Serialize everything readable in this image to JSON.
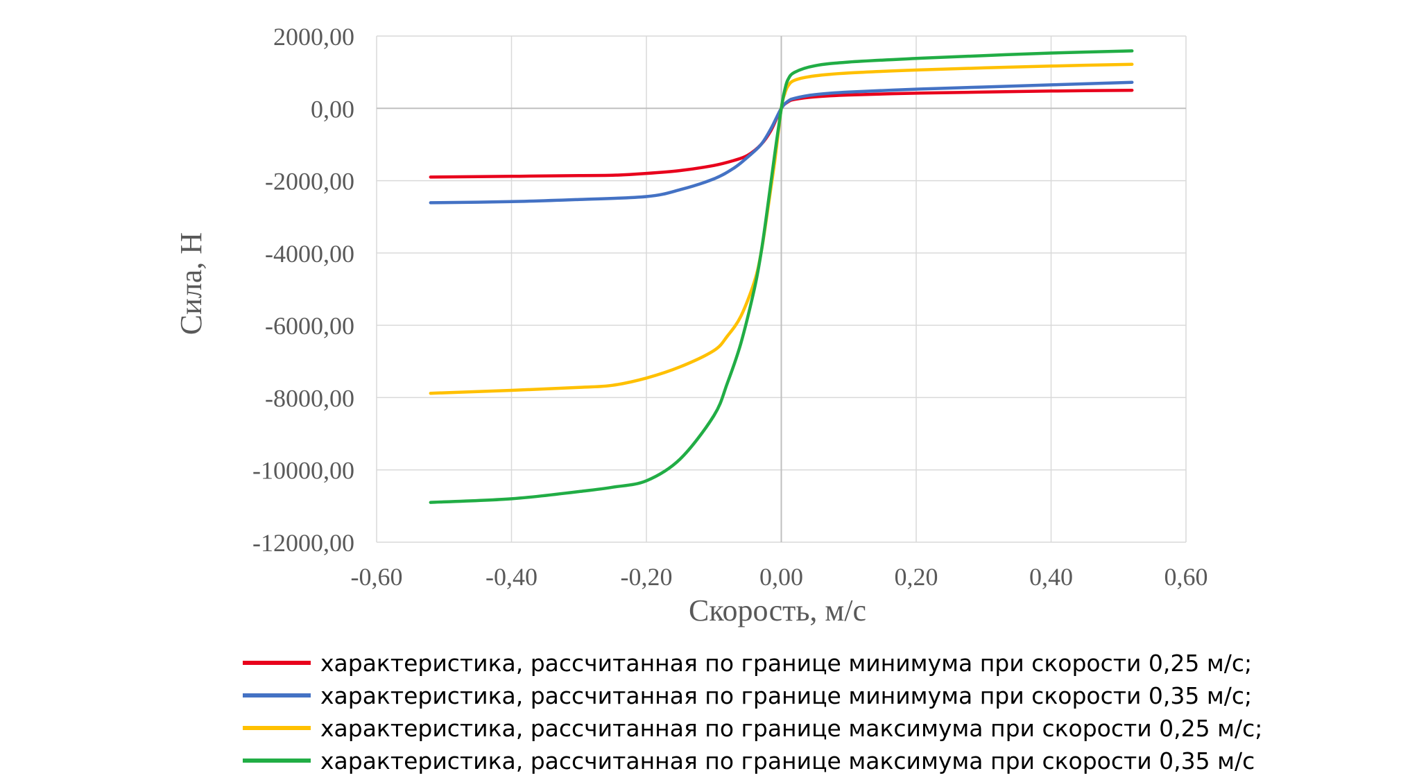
{
  "chart_data": {
    "type": "line",
    "title": "",
    "xlabel": "Скорость, м/с",
    "ylabel": "Сила, Н",
    "xlim": [
      -0.6,
      0.6
    ],
    "ylim": [
      -12000,
      2000
    ],
    "grid": true,
    "legend_position": "bottom",
    "x_ticks": [
      -0.6,
      -0.4,
      -0.2,
      0.0,
      0.2,
      0.4,
      0.6
    ],
    "y_ticks": [
      2000,
      0,
      -2000,
      -4000,
      -6000,
      -8000,
      -10000,
      -12000
    ],
    "x_tick_labels": [
      "-0,60",
      "-0,40",
      "-0,20",
      "0,00",
      "0,20",
      "0,40",
      "0,60"
    ],
    "y_tick_labels": [
      "2000,00",
      "0,00",
      "-2000,00",
      "-4000,00",
      "-6000,00",
      "-8000,00",
      "-10000,00",
      "-12000,00"
    ],
    "series": [
      {
        "name": "характеристика, рассчитанная по границе минимума при скорости 0,25 м/с;",
        "color": "#E8001C",
        "points": [
          [
            -0.52,
            -1900
          ],
          [
            -0.4,
            -1880
          ],
          [
            -0.3,
            -1860
          ],
          [
            -0.25,
            -1850
          ],
          [
            -0.2,
            -1800
          ],
          [
            -0.15,
            -1720
          ],
          [
            -0.1,
            -1580
          ],
          [
            -0.07,
            -1440
          ],
          [
            -0.05,
            -1300
          ],
          [
            -0.03,
            -1000
          ],
          [
            -0.015,
            -600
          ],
          [
            0,
            0
          ],
          [
            0.01,
            180
          ],
          [
            0.02,
            250
          ],
          [
            0.05,
            320
          ],
          [
            0.1,
            370
          ],
          [
            0.2,
            420
          ],
          [
            0.3,
            450
          ],
          [
            0.4,
            480
          ],
          [
            0.52,
            500
          ]
        ]
      },
      {
        "name": "характеристика, рассчитанная по границе минимума при скорости 0,35 м/с;",
        "color": "#4472C4",
        "points": [
          [
            -0.52,
            -2610
          ],
          [
            -0.4,
            -2580
          ],
          [
            -0.3,
            -2520
          ],
          [
            -0.2,
            -2440
          ],
          [
            -0.15,
            -2250
          ],
          [
            -0.1,
            -1950
          ],
          [
            -0.07,
            -1650
          ],
          [
            -0.05,
            -1350
          ],
          [
            -0.03,
            -1000
          ],
          [
            -0.015,
            -550
          ],
          [
            0,
            0
          ],
          [
            0.01,
            200
          ],
          [
            0.02,
            280
          ],
          [
            0.05,
            380
          ],
          [
            0.1,
            450
          ],
          [
            0.2,
            530
          ],
          [
            0.3,
            590
          ],
          [
            0.4,
            650
          ],
          [
            0.52,
            720
          ]
        ]
      },
      {
        "name": "характеристика, рассчитанная по границе максимума при скорости 0,25 м/с;",
        "color": "#FFC000",
        "points": [
          [
            -0.52,
            -7880
          ],
          [
            -0.4,
            -7800
          ],
          [
            -0.3,
            -7720
          ],
          [
            -0.25,
            -7660
          ],
          [
            -0.2,
            -7460
          ],
          [
            -0.15,
            -7150
          ],
          [
            -0.1,
            -6700
          ],
          [
            -0.08,
            -6300
          ],
          [
            -0.06,
            -5750
          ],
          [
            -0.04,
            -4800
          ],
          [
            -0.03,
            -4000
          ],
          [
            -0.02,
            -2800
          ],
          [
            -0.01,
            -1500
          ],
          [
            0,
            0
          ],
          [
            0.005,
            400
          ],
          [
            0.01,
            620
          ],
          [
            0.02,
            780
          ],
          [
            0.05,
            900
          ],
          [
            0.1,
            980
          ],
          [
            0.2,
            1060
          ],
          [
            0.3,
            1120
          ],
          [
            0.4,
            1170
          ],
          [
            0.52,
            1220
          ]
        ]
      },
      {
        "name": "характеристика, рассчитанная по границе максимума при скорости 0,35 м/с",
        "color": "#21AD45",
        "points": [
          [
            -0.52,
            -10900
          ],
          [
            -0.4,
            -10800
          ],
          [
            -0.3,
            -10600
          ],
          [
            -0.25,
            -10480
          ],
          [
            -0.2,
            -10300
          ],
          [
            -0.15,
            -9700
          ],
          [
            -0.1,
            -8500
          ],
          [
            -0.08,
            -7600
          ],
          [
            -0.06,
            -6500
          ],
          [
            -0.04,
            -5000
          ],
          [
            -0.03,
            -4000
          ],
          [
            -0.02,
            -2700
          ],
          [
            -0.01,
            -1300
          ],
          [
            0,
            0
          ],
          [
            0.005,
            500
          ],
          [
            0.01,
            800
          ],
          [
            0.02,
            1000
          ],
          [
            0.05,
            1180
          ],
          [
            0.1,
            1280
          ],
          [
            0.2,
            1380
          ],
          [
            0.3,
            1460
          ],
          [
            0.4,
            1530
          ],
          [
            0.52,
            1590
          ]
        ]
      }
    ]
  }
}
